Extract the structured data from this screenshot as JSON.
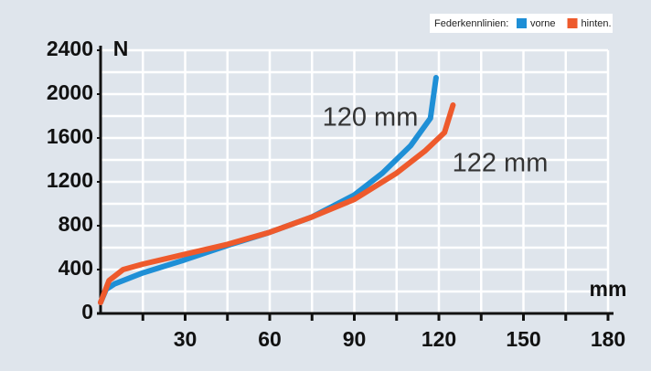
{
  "chart_data": {
    "type": "line",
    "legend_title": "Federkennlinien:",
    "y_label": "N",
    "x_label": "mm",
    "annotations": [
      {
        "text": "120 mm"
      },
      {
        "text": "122 mm"
      }
    ],
    "series": [
      {
        "name": "vorne",
        "color": "#1e8fd6",
        "x": [
          0,
          2,
          5,
          15,
          30,
          45,
          60,
          75,
          90,
          100,
          110,
          117,
          119
        ],
        "values": [
          100,
          220,
          270,
          370,
          490,
          620,
          740,
          880,
          1080,
          1280,
          1530,
          1780,
          2150
        ]
      },
      {
        "name": "hinten.",
        "color": "#ee5a2c",
        "x": [
          0,
          3,
          8,
          15,
          30,
          45,
          60,
          75,
          90,
          105,
          115,
          122,
          125
        ],
        "values": [
          100,
          300,
          400,
          450,
          540,
          630,
          740,
          880,
          1040,
          1280,
          1480,
          1650,
          1900
        ]
      }
    ],
    "xlim": [
      0,
      180
    ],
    "ylim": [
      0,
      2400
    ],
    "xticks": [
      30,
      60,
      90,
      120,
      150,
      180
    ],
    "xminorticks": [
      15,
      45,
      75,
      105,
      135,
      165
    ],
    "yticks": [
      0,
      400,
      800,
      1200,
      1600,
      2000,
      2400
    ],
    "yminorticks": [
      200,
      600,
      1000,
      1400,
      1800,
      2200
    ],
    "grid": true
  }
}
